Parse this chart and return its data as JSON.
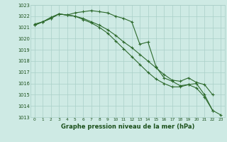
{
  "x": [
    0,
    1,
    2,
    3,
    4,
    5,
    6,
    7,
    8,
    9,
    10,
    11,
    12,
    13,
    14,
    15,
    16,
    17,
    18,
    19,
    20,
    21,
    22,
    23
  ],
  "line1": [
    1021.2,
    1021.5,
    1021.8,
    1022.2,
    1022.1,
    1022.3,
    1022.4,
    1022.5,
    1022.4,
    1022.3,
    1022.0,
    1021.8,
    1021.5,
    1019.5,
    1019.7,
    1017.5,
    1016.5,
    1016.2,
    1015.8,
    1015.9,
    1016.0,
    1015.0,
    1013.6,
    null
  ],
  "line2": [
    1021.2,
    1021.5,
    1021.9,
    1022.2,
    1022.1,
    1022.0,
    1021.8,
    1021.5,
    1021.2,
    1020.8,
    1020.3,
    1019.7,
    1019.2,
    1018.6,
    1018.0,
    1017.4,
    1016.8,
    1016.3,
    1016.2,
    1016.5,
    1016.1,
    1015.9,
    1015.0,
    null
  ],
  "line3": [
    1021.3,
    1021.5,
    1021.8,
    1022.2,
    1022.1,
    1022.0,
    1021.7,
    1021.4,
    1021.0,
    1020.5,
    1019.8,
    1019.1,
    1018.4,
    1017.7,
    1017.0,
    1016.4,
    1016.0,
    1015.7,
    1015.7,
    1015.9,
    1015.6,
    1014.8,
    1013.6,
    1013.2
  ],
  "xlim": [
    -0.5,
    23.5
  ],
  "ylim": [
    1013,
    1023
  ],
  "yticks": [
    1013,
    1014,
    1015,
    1016,
    1017,
    1018,
    1019,
    1020,
    1021,
    1022,
    1023
  ],
  "xticks": [
    0,
    1,
    2,
    3,
    4,
    5,
    6,
    7,
    8,
    9,
    10,
    11,
    12,
    13,
    14,
    15,
    16,
    17,
    18,
    19,
    20,
    21,
    22,
    23
  ],
  "xlabel": "Graphe pression niveau de la mer (hPa)",
  "line_color": "#2d6a2d",
  "bg_color": "#ceeae4",
  "grid_color": "#aacfc8",
  "label_color": "#1a4f1a"
}
